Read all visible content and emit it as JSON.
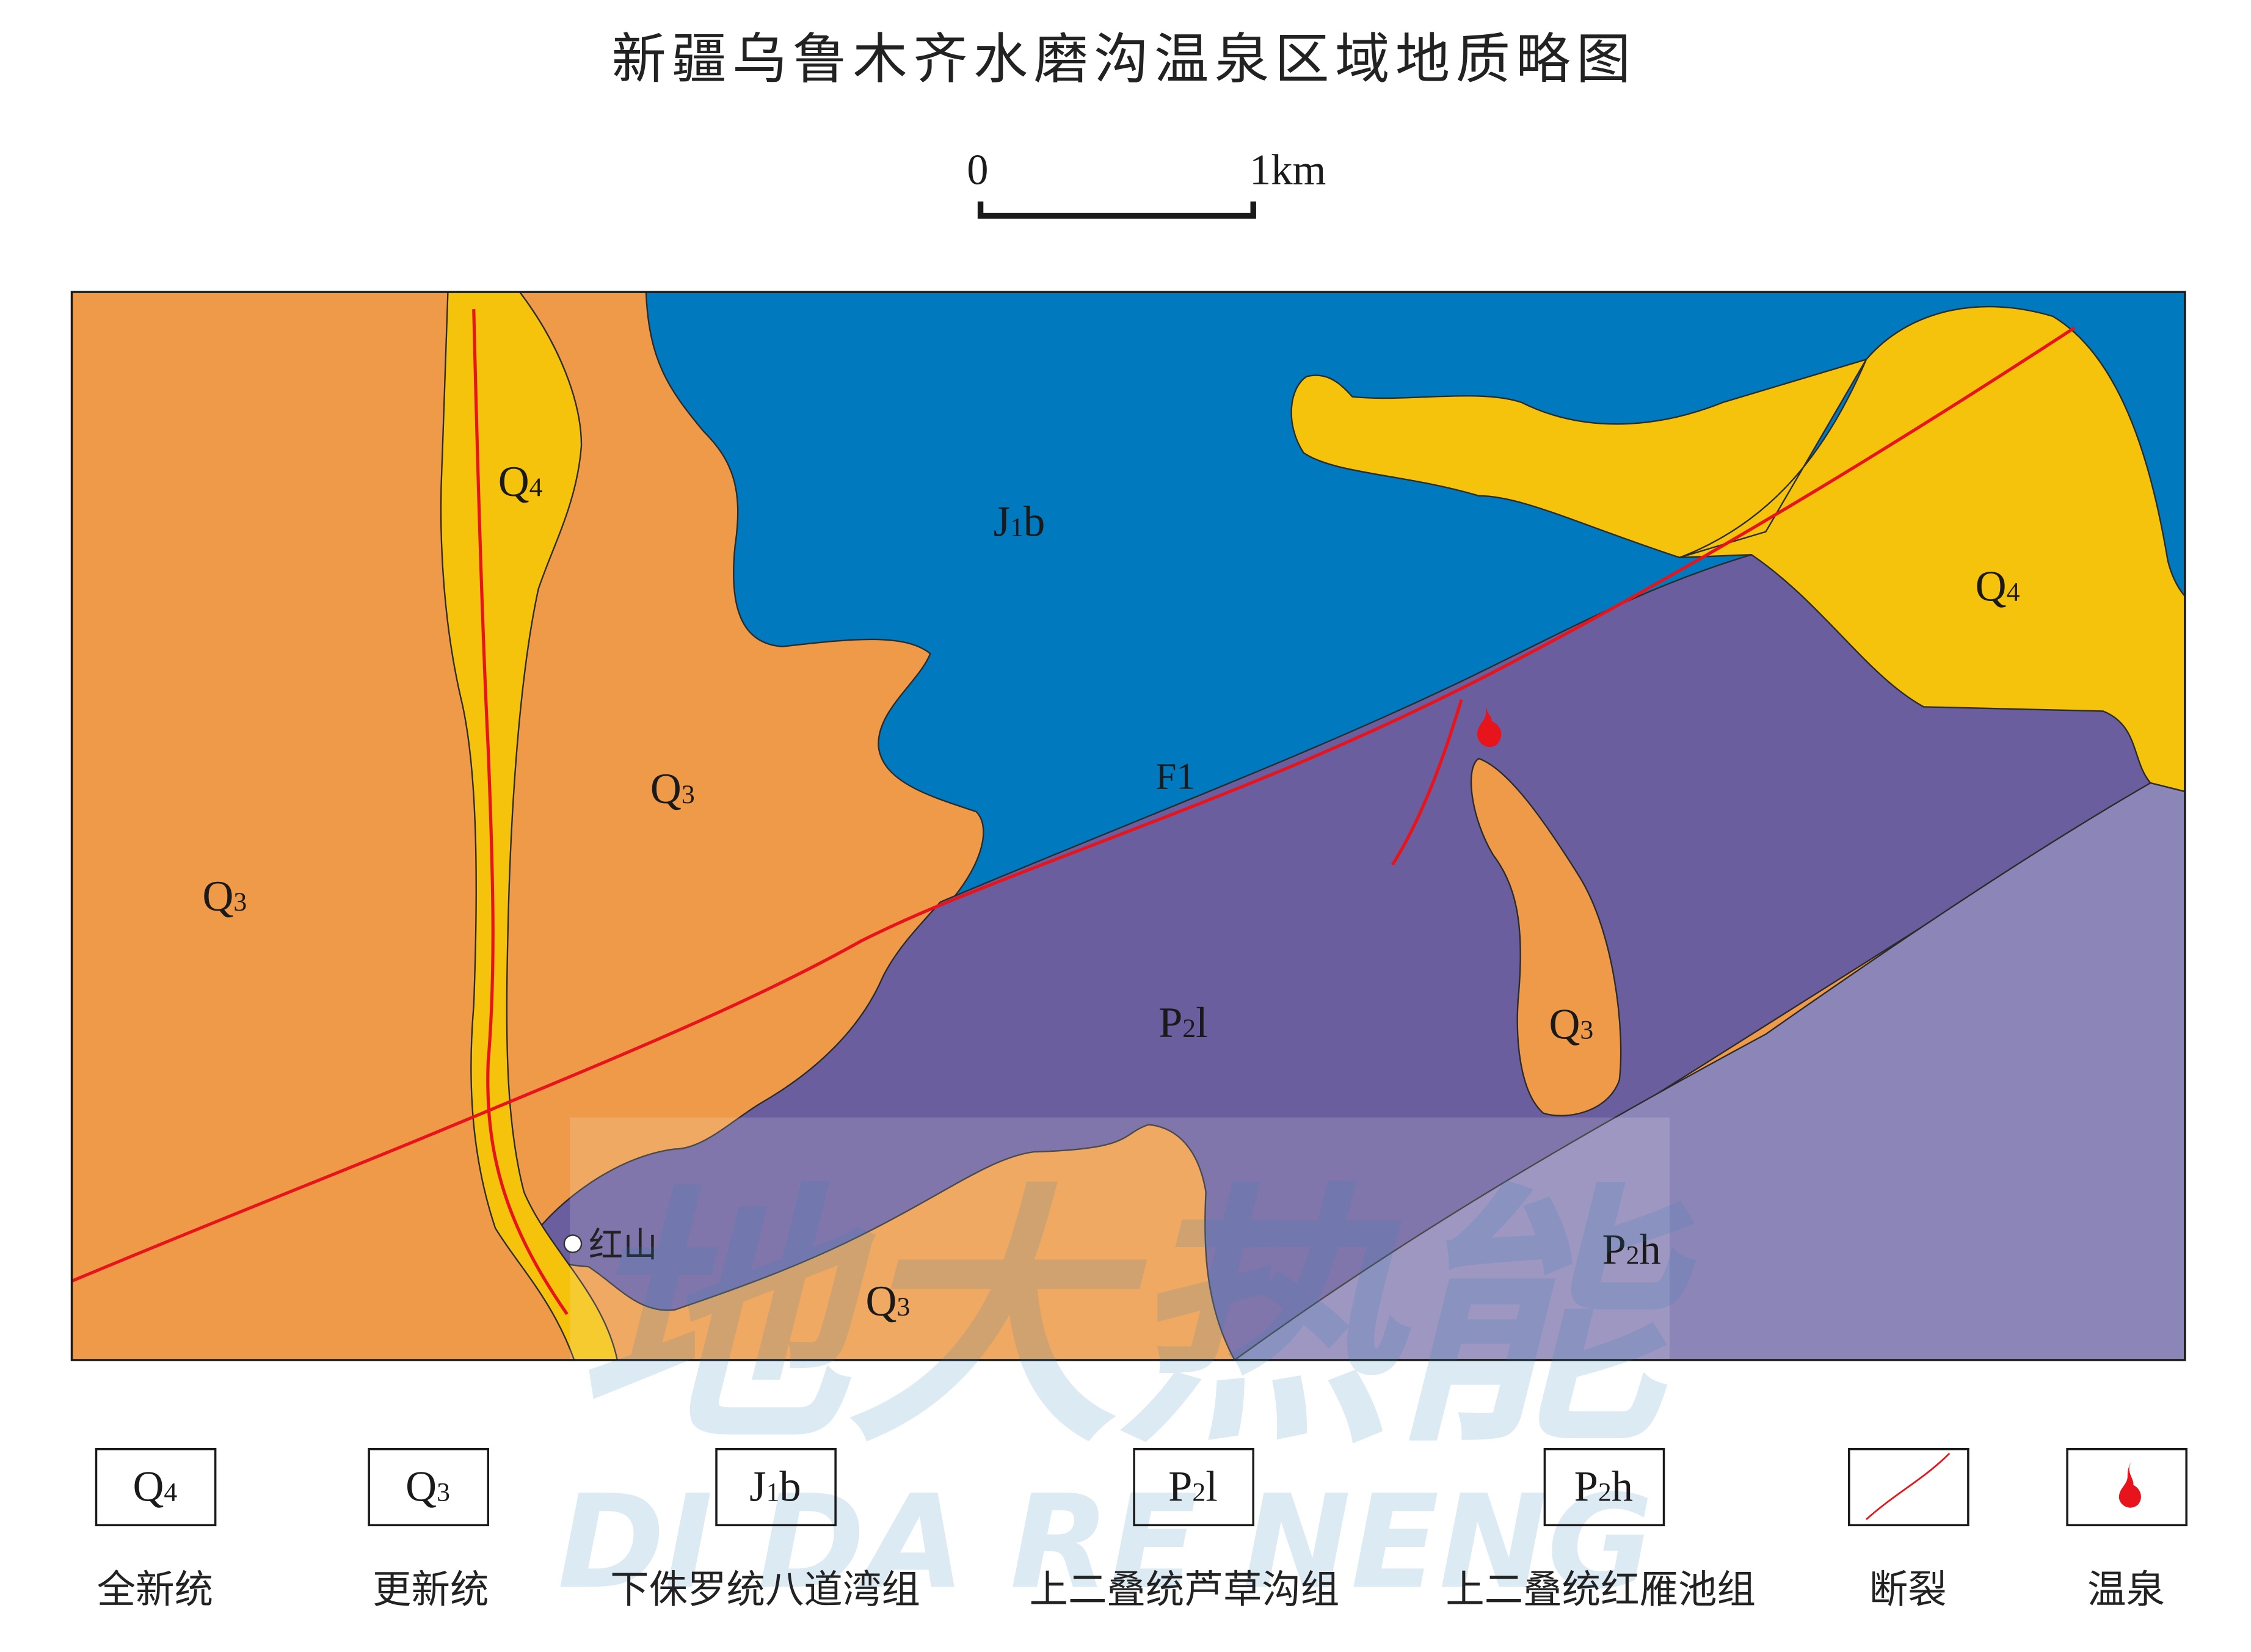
{
  "title": "新疆乌鲁木齐水磨沟温泉区域地质略图",
  "scale_bar": {
    "start_label": "0",
    "end_label": "1km"
  },
  "colors": {
    "Q4": "#F5C20C",
    "Q3": "#EE9A48",
    "J1b": "#0079BE",
    "P2l": "#6A5E9E",
    "P2h": "#8C85B8",
    "fault": "#E8141B",
    "hot_spring": "#E8141B"
  },
  "map_labels": {
    "q4_left": {
      "base": "Q",
      "sub": "4"
    },
    "q4_right": {
      "base": "Q",
      "sub": "4"
    },
    "q3_far_left": {
      "base": "Q",
      "sub": "3"
    },
    "q3_center": {
      "base": "Q",
      "sub": "3"
    },
    "q3_bottom": {
      "base": "Q",
      "sub": "3"
    },
    "q3_blob": {
      "base": "Q",
      "sub": "3"
    },
    "j1b": {
      "base": "J",
      "sub": "1",
      "rest": "b"
    },
    "p2l": {
      "base": "P",
      "sub": "2",
      "rest": "l"
    },
    "p2h": {
      "base": "P",
      "sub": "2",
      "rest": "h"
    },
    "fault_f1": "F1",
    "place_hongshan": "红山"
  },
  "legend": [
    {
      "base": "Q",
      "sub": "4",
      "rest": "",
      "label": "全新统",
      "icon": "Q4-unit-swatch"
    },
    {
      "base": "Q",
      "sub": "3",
      "rest": "",
      "label": "更新统",
      "icon": "Q3-unit-swatch"
    },
    {
      "base": "J",
      "sub": "1",
      "rest": "b",
      "label": "下侏罗统八道湾组",
      "icon": "J1b-unit-swatch"
    },
    {
      "base": "P",
      "sub": "2",
      "rest": "l",
      "label": "上二叠统芦草沟组",
      "icon": "P2l-unit-swatch"
    },
    {
      "base": "P",
      "sub": "2",
      "rest": "h",
      "label": "上二叠统红雁池组",
      "icon": "P2h-unit-swatch"
    },
    {
      "label": "断裂",
      "icon": "fault-line-icon"
    },
    {
      "label": "温泉",
      "icon": "hot-spring-icon"
    }
  ],
  "watermark": {
    "main": "地大热能",
    "pinyin": "DI DA RE NENG"
  }
}
